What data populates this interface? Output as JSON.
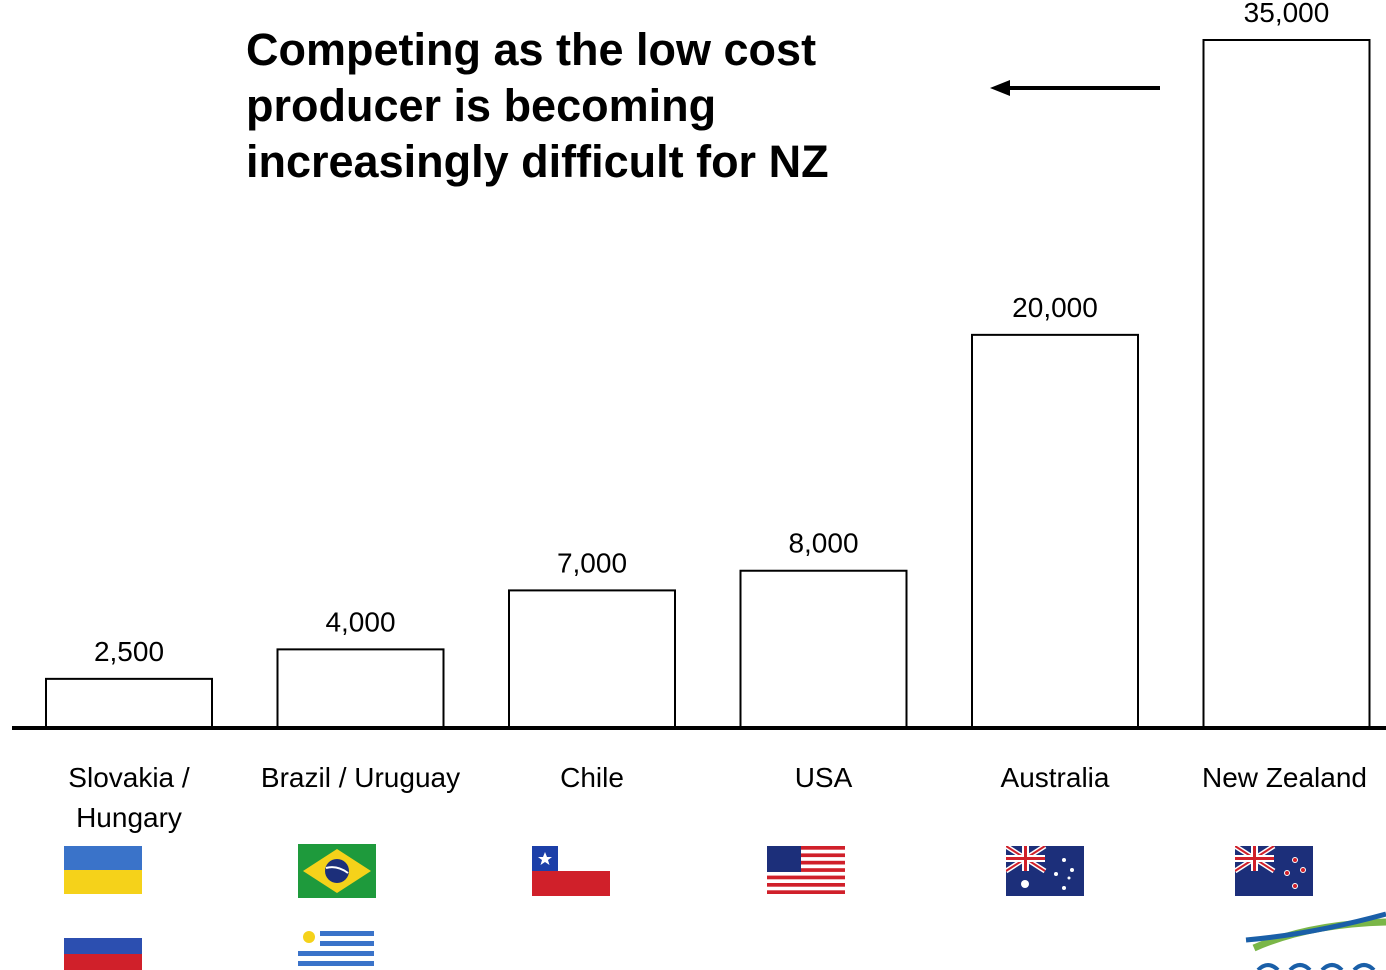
{
  "headline": {
    "lines": [
      "Competing as the low cost",
      "producer is becoming",
      "increasingly difficult for NZ"
    ]
  },
  "chart_data": {
    "type": "bar",
    "categories": [
      "Slovakia / Hungary",
      "Brazil / Uruguay",
      "Chile",
      "USA",
      "Australia",
      "New Zealand"
    ],
    "values": [
      2500,
      4000,
      7000,
      8000,
      20000,
      35000
    ],
    "value_labels": [
      "2,500",
      "4,000",
      "7,000",
      "8,000",
      "20,000",
      "35,000"
    ],
    "category_label_lines": [
      [
        "Slovakia /",
        "Hungary"
      ],
      [
        "Brazil / Uruguay"
      ],
      [
        "Chile"
      ],
      [
        "USA"
      ],
      [
        "Australia"
      ],
      [
        "New Zealand"
      ]
    ],
    "ylim": [
      0,
      35000
    ],
    "grid": false,
    "bar_fill": "#ffffff",
    "bar_stroke": "#000000"
  },
  "flags": [
    {
      "category": "Slovakia / Hungary",
      "icons": [
        "ukraine-flag-icon",
        "russia-flag-icon"
      ]
    },
    {
      "category": "Brazil / Uruguay",
      "icons": [
        "brazil-flag-icon",
        "uruguay-flag-icon"
      ]
    },
    {
      "category": "Chile",
      "icons": [
        "chile-flag-icon"
      ]
    },
    {
      "category": "USA",
      "icons": [
        "usa-flag-icon"
      ]
    },
    {
      "category": "Australia",
      "icons": [
        "australia-flag-icon"
      ]
    },
    {
      "category": "New Zealand",
      "icons": [
        "new-zealand-flag-icon"
      ]
    }
  ],
  "colors": {
    "flag_blue": "#3a73c9",
    "flag_yellow": "#f5d21a",
    "flag_red": "#d0202a",
    "flag_green": "#1e9a3c",
    "flag_navy": "#1c2f7a",
    "logo_green": "#7ab648",
    "logo_blue": "#1a5fa8"
  }
}
